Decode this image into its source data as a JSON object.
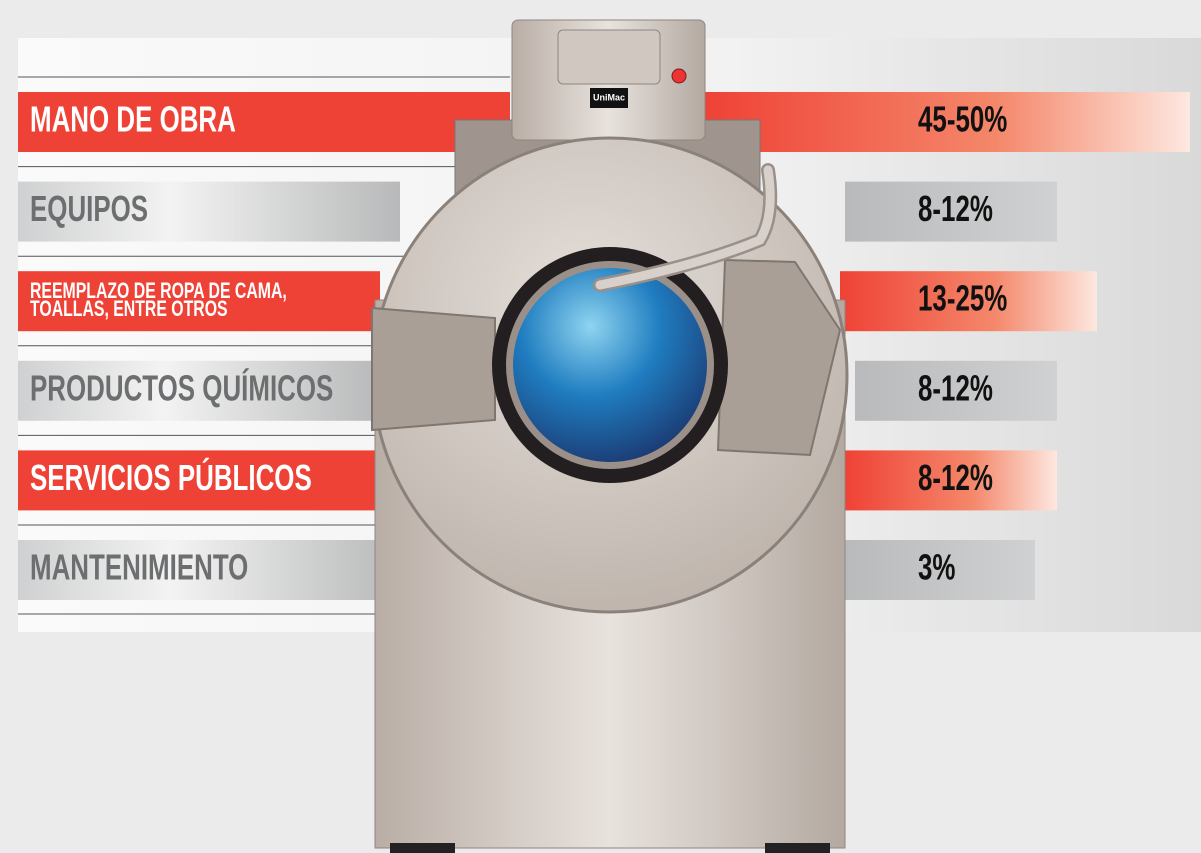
{
  "machine": {
    "brand": "UniMac"
  },
  "rows": [
    {
      "label": [
        "MANO DE OBRA"
      ],
      "value": "45-50%",
      "style": "red"
    },
    {
      "label": [
        "EQUIPOS"
      ],
      "value": "8-12%",
      "style": "gray"
    },
    {
      "label": [
        "REEMPLAZO DE ROPA DE CAMA,",
        "TOALLAS, ENTRE OTROS"
      ],
      "value": "13-25%",
      "style": "red"
    },
    {
      "label": [
        "PRODUCTOS QUÍMICOS"
      ],
      "value": "8-12%",
      "style": "gray"
    },
    {
      "label": [
        "SERVICIOS PÚBLICOS"
      ],
      "value": "8-12%",
      "style": "red"
    },
    {
      "label": [
        "MANTENIMIENTO"
      ],
      "value": "3%",
      "style": "gray"
    }
  ]
}
